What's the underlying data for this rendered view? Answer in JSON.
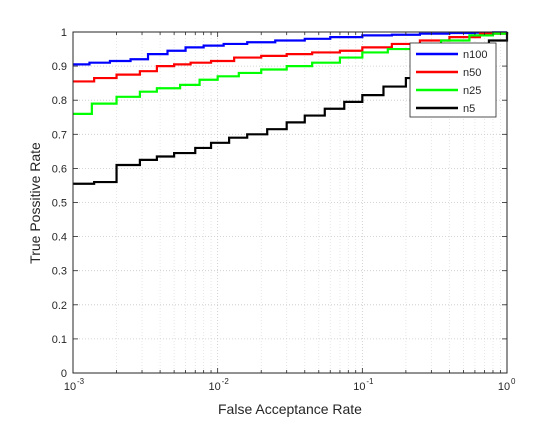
{
  "chart_data": {
    "type": "line",
    "xlabel": "False Acceptance Rate",
    "ylabel": "True Possitive Rate",
    "xscale": "log",
    "xlim": [
      0.001,
      1
    ],
    "ylim": [
      0,
      1
    ],
    "grid": "on (major and minor, dotted)",
    "legend_position": "top-right",
    "x_ticks": [
      {
        "value": 0.001,
        "base": "10",
        "exp": "-3"
      },
      {
        "value": 0.01,
        "base": "10",
        "exp": "-2"
      },
      {
        "value": 0.1,
        "base": "10",
        "exp": "-1"
      },
      {
        "value": 1,
        "base": "10",
        "exp": "0"
      }
    ],
    "y_ticks": [
      {
        "value": 0,
        "label": "0"
      },
      {
        "value": 0.1,
        "label": "0.1"
      },
      {
        "value": 0.2,
        "label": "0.2"
      },
      {
        "value": 0.3,
        "label": "0.3"
      },
      {
        "value": 0.4,
        "label": "0.4"
      },
      {
        "value": 0.5,
        "label": "0.5"
      },
      {
        "value": 0.6,
        "label": "0.6"
      },
      {
        "value": 0.7,
        "label": "0.7"
      },
      {
        "value": 0.8,
        "label": "0.8"
      },
      {
        "value": 0.9,
        "label": "0.9"
      },
      {
        "value": 1,
        "label": "1"
      }
    ],
    "series": [
      {
        "name": "n100",
        "color": "#0000ff",
        "points": [
          [
            0.001,
            0.905
          ],
          [
            0.0013,
            0.91
          ],
          [
            0.0018,
            0.915
          ],
          [
            0.0025,
            0.92
          ],
          [
            0.0033,
            0.935
          ],
          [
            0.0045,
            0.945
          ],
          [
            0.006,
            0.955
          ],
          [
            0.008,
            0.96
          ],
          [
            0.011,
            0.965
          ],
          [
            0.016,
            0.97
          ],
          [
            0.025,
            0.975
          ],
          [
            0.04,
            0.98
          ],
          [
            0.06,
            0.985
          ],
          [
            0.1,
            0.99
          ],
          [
            0.16,
            0.992
          ],
          [
            0.25,
            0.995
          ],
          [
            0.4,
            0.997
          ],
          [
            0.6,
            0.998
          ],
          [
            0.8,
            0.999
          ],
          [
            1,
            1
          ]
        ]
      },
      {
        "name": "n50",
        "color": "#ff0000",
        "points": [
          [
            0.001,
            0.855
          ],
          [
            0.0014,
            0.865
          ],
          [
            0.002,
            0.875
          ],
          [
            0.0029,
            0.885
          ],
          [
            0.0038,
            0.9
          ],
          [
            0.005,
            0.905
          ],
          [
            0.0065,
            0.91
          ],
          [
            0.009,
            0.915
          ],
          [
            0.013,
            0.925
          ],
          [
            0.02,
            0.93
          ],
          [
            0.03,
            0.935
          ],
          [
            0.045,
            0.94
          ],
          [
            0.07,
            0.945
          ],
          [
            0.1,
            0.955
          ],
          [
            0.16,
            0.965
          ],
          [
            0.25,
            0.975
          ],
          [
            0.4,
            0.985
          ],
          [
            0.65,
            0.995
          ],
          [
            1,
            1
          ]
        ]
      },
      {
        "name": "n25",
        "color": "#00ff00",
        "points": [
          [
            0.001,
            0.76
          ],
          [
            0.00135,
            0.79
          ],
          [
            0.002,
            0.81
          ],
          [
            0.0029,
            0.825
          ],
          [
            0.0038,
            0.835
          ],
          [
            0.0055,
            0.845
          ],
          [
            0.0075,
            0.86
          ],
          [
            0.01,
            0.87
          ],
          [
            0.014,
            0.88
          ],
          [
            0.02,
            0.89
          ],
          [
            0.03,
            0.9
          ],
          [
            0.045,
            0.91
          ],
          [
            0.07,
            0.925
          ],
          [
            0.1,
            0.94
          ],
          [
            0.15,
            0.95
          ],
          [
            0.22,
            0.96
          ],
          [
            0.35,
            0.975
          ],
          [
            0.55,
            0.99
          ],
          [
            0.8,
            0.995
          ],
          [
            1,
            1
          ]
        ]
      },
      {
        "name": "n5",
        "color": "#000000",
        "points": [
          [
            0.001,
            0.555
          ],
          [
            0.0014,
            0.56
          ],
          [
            0.002,
            0.61
          ],
          [
            0.0029,
            0.625
          ],
          [
            0.0038,
            0.635
          ],
          [
            0.005,
            0.645
          ],
          [
            0.007,
            0.66
          ],
          [
            0.009,
            0.675
          ],
          [
            0.012,
            0.69
          ],
          [
            0.016,
            0.7
          ],
          [
            0.022,
            0.715
          ],
          [
            0.03,
            0.735
          ],
          [
            0.04,
            0.755
          ],
          [
            0.055,
            0.775
          ],
          [
            0.075,
            0.795
          ],
          [
            0.1,
            0.815
          ],
          [
            0.14,
            0.84
          ],
          [
            0.2,
            0.865
          ],
          [
            0.28,
            0.89
          ],
          [
            0.4,
            0.92
          ],
          [
            0.55,
            0.95
          ],
          [
            0.75,
            0.975
          ],
          [
            1,
            1
          ]
        ]
      }
    ]
  }
}
